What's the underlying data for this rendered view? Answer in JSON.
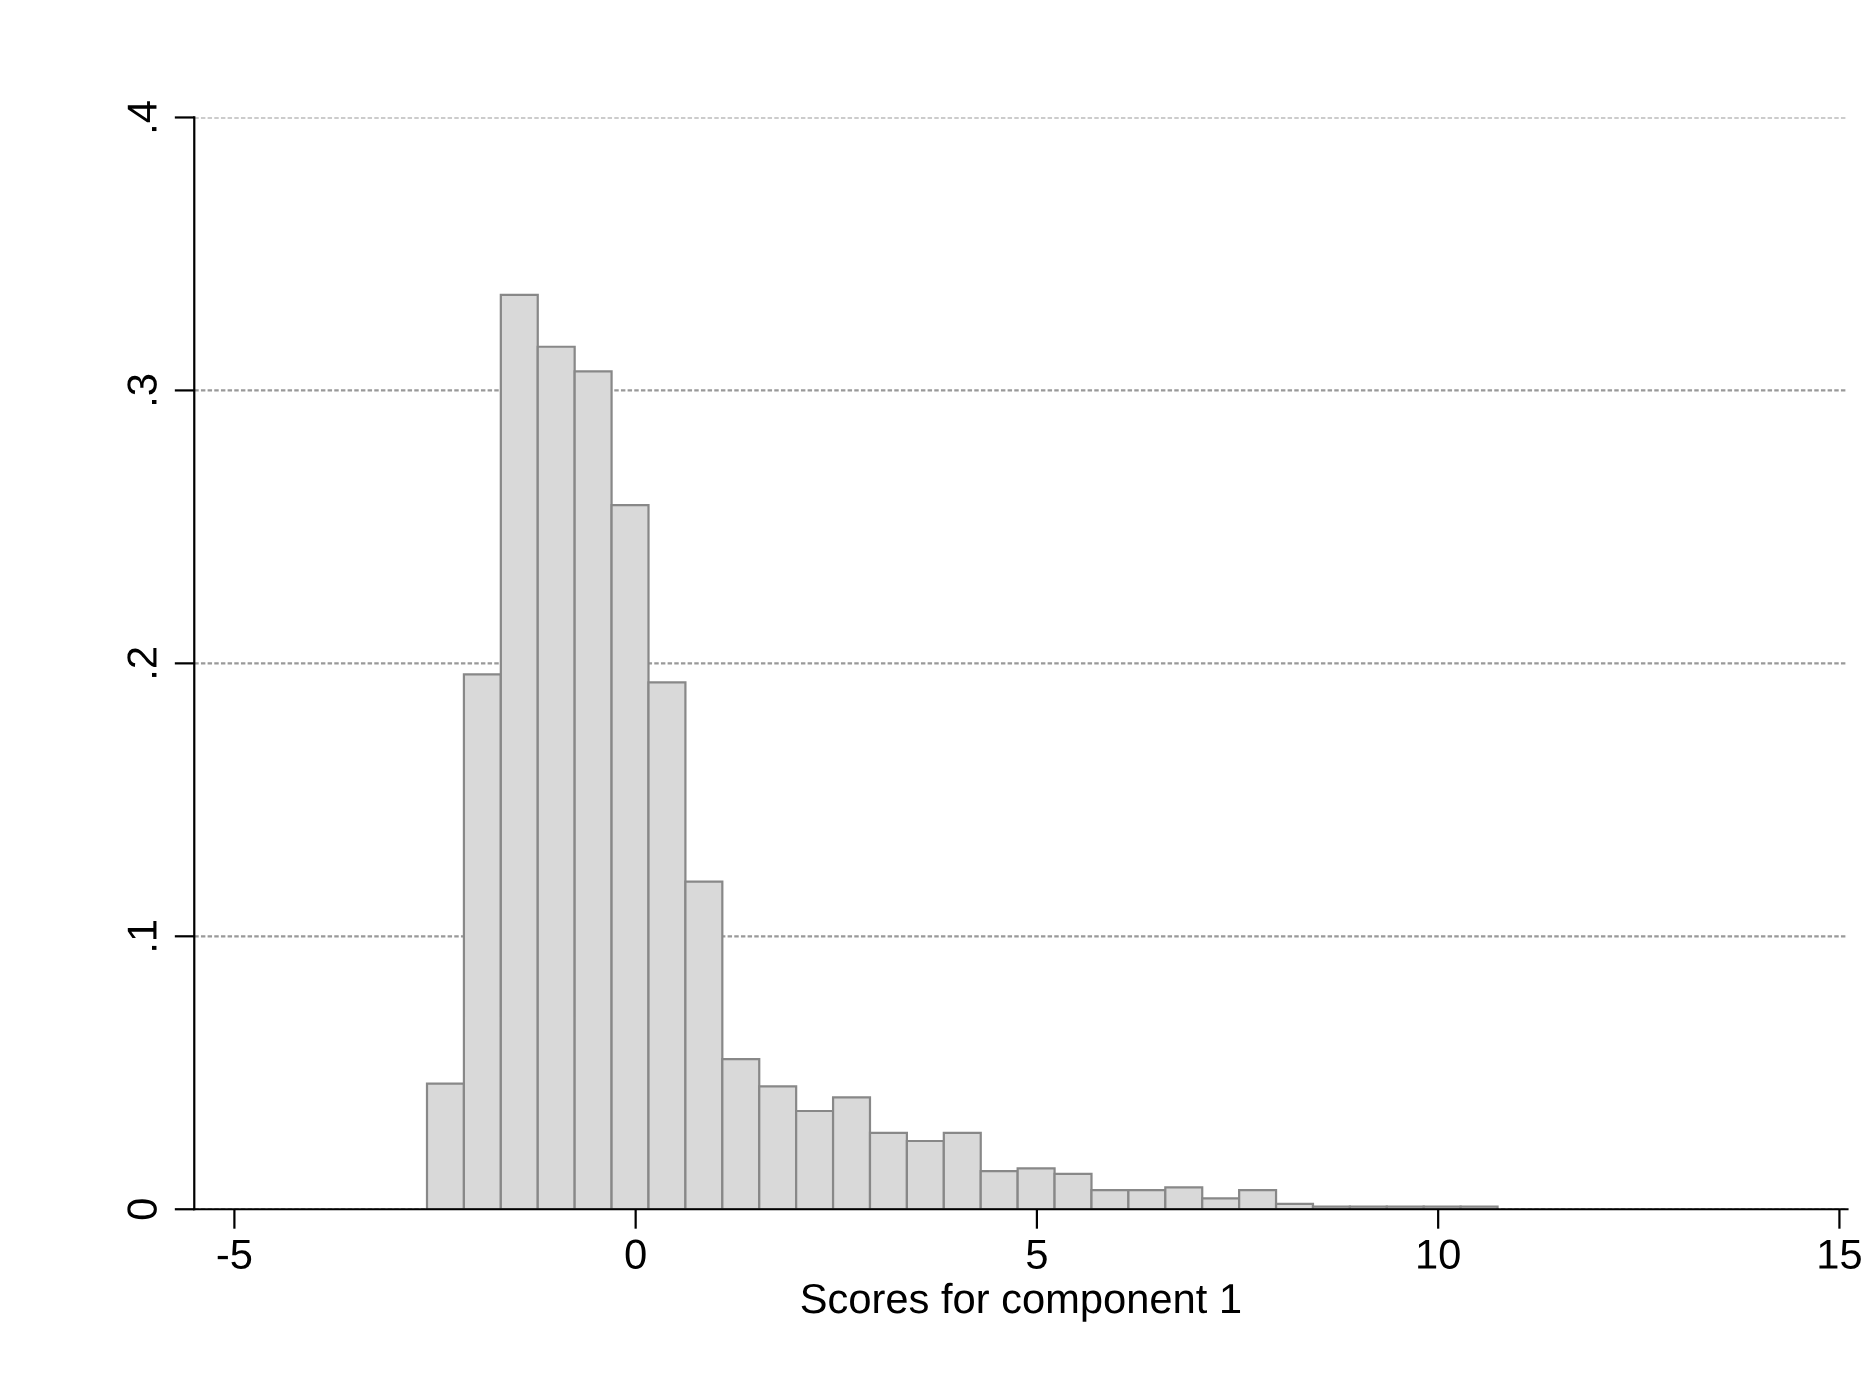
{
  "chart_data": {
    "type": "histogram",
    "xlabel": "Scores for component 1",
    "bins": [
      -2.6,
      -2.14,
      -1.68,
      -1.22,
      -0.76,
      -0.3,
      0.16,
      0.62,
      1.08,
      1.54,
      2.0,
      2.46,
      2.92,
      3.38,
      3.84,
      4.3,
      4.76,
      5.22,
      5.68,
      6.14,
      6.6,
      7.06,
      7.52,
      7.98,
      8.44,
      8.9,
      9.36,
      9.82,
      10.28,
      10.74
    ],
    "values": [
      0.046,
      0.196,
      0.335,
      0.316,
      0.307,
      0.258,
      0.193,
      0.12,
      0.055,
      0.045,
      0.036,
      0.041,
      0.028,
      0.025,
      0.028,
      0.014,
      0.015,
      0.013,
      0.007,
      0.007,
      0.008,
      0.004,
      0.007,
      0.002,
      0.001,
      0.001,
      0.001,
      0.001,
      0.001
    ],
    "color": "#d9d9d9",
    "xlim": [
      -5.5,
      15.1
    ],
    "xticks": [
      -5,
      0,
      5,
      10,
      15
    ],
    "ylim": [
      0,
      0.4
    ],
    "yticks": [
      {
        "value": 0,
        "label": "0"
      },
      {
        "value": 0.1,
        "label": ".1"
      },
      {
        "value": 0.2,
        "label": ".2"
      },
      {
        "value": 0.3,
        "label": ".3"
      },
      {
        "value": 0.4,
        "label": ".4"
      }
    ],
    "grid": "y"
  }
}
